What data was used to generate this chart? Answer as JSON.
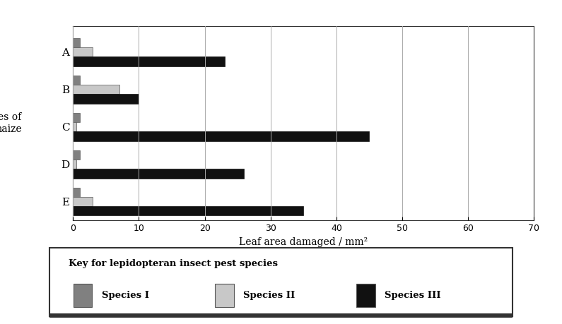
{
  "fields": [
    "A",
    "B",
    "C",
    "D",
    "E"
  ],
  "species_I": [
    1,
    1,
    1,
    1,
    1
  ],
  "species_II": [
    3,
    7,
    0.5,
    0.5,
    3
  ],
  "species_III": [
    23,
    10,
    45,
    26,
    35
  ],
  "color_I": "#808080",
  "color_II": "#c8c8c8",
  "color_III": "#111111",
  "xlabel": "Leaf area damaged / mm²",
  "ylabel": "Types of\nmaize",
  "xlim": [
    0,
    70
  ],
  "xticks": [
    0,
    10,
    20,
    30,
    40,
    50,
    60,
    70
  ],
  "bar_height": 0.25,
  "legend_title": "Key for lepidopteran insect pest species",
  "legend_labels": [
    "Species I",
    "Species II",
    "Species III"
  ],
  "bg_color": "#ffffff"
}
